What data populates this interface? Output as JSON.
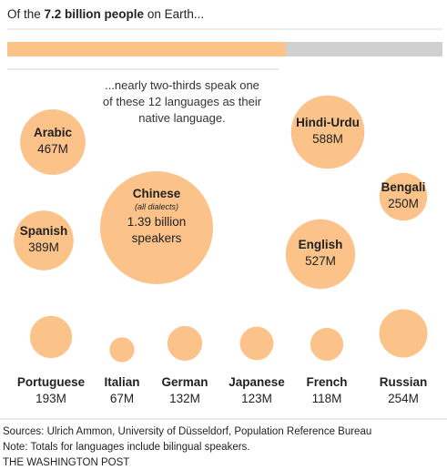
{
  "header": {
    "intro_prefix": "Of the ",
    "intro_bold": "7.2 billion people",
    "intro_suffix": " on Earth...",
    "note_lines": [
      "...nearly two-thirds speak one",
      "of these 12 languages as their",
      "native language."
    ]
  },
  "colors": {
    "bubble": "#fbc38a",
    "bar_fill": "#fbc38a",
    "bar_track": "#d0d0d0",
    "text": "#222222",
    "rule": "#d6d6d6"
  },
  "chart_data": {
    "type": "bubble",
    "progress_fraction": 0.64,
    "unit": "native speakers",
    "languages": [
      {
        "name": "Chinese",
        "note": "(all dialects)",
        "value_label": "1.39 billion",
        "value_label2": "speakers",
        "value_millions": 1390
      },
      {
        "name": "Arabic",
        "value_label": "467M",
        "value_millions": 467
      },
      {
        "name": "Spanish",
        "value_label": "389M",
        "value_millions": 389
      },
      {
        "name": "Hindi-Urdu",
        "value_label": "588M",
        "value_millions": 588
      },
      {
        "name": "Bengali",
        "value_label": "250M",
        "value_millions": 250
      },
      {
        "name": "English",
        "value_label": "527M",
        "value_millions": 527
      },
      {
        "name": "Portuguese",
        "value_label": "193M",
        "value_millions": 193
      },
      {
        "name": "Italian",
        "value_label": "67M",
        "value_millions": 67
      },
      {
        "name": "German",
        "value_label": "132M",
        "value_millions": 132
      },
      {
        "name": "Japanese",
        "value_label": "123M",
        "value_millions": 123
      },
      {
        "name": "French",
        "value_label": "118M",
        "value_millions": 118
      },
      {
        "name": "Russian",
        "value_label": "254M",
        "value_millions": 254
      }
    ]
  },
  "footer": {
    "sources": "Sources: Ulrich Ammon, University of Düsseldorf, Population Reference Bureau",
    "note": "Note: Totals for languages include bilingual speakers.",
    "credit": "THE WASHINGTON POST"
  }
}
